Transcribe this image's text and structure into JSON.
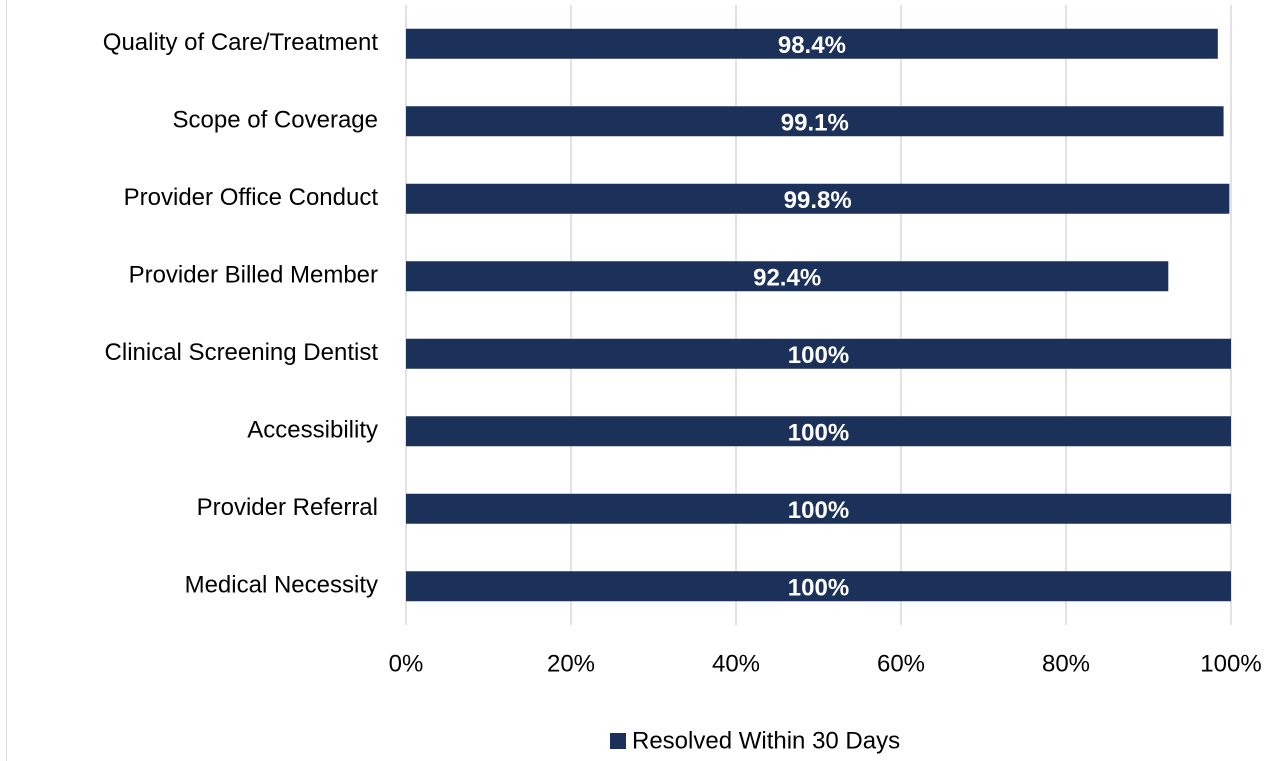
{
  "chart_data": {
    "type": "hbar",
    "categories": [
      "Quality of Care/Treatment",
      "Scope of Coverage",
      "Provider Office Conduct",
      "Provider Billed Member",
      "Clinical Screening Dentist",
      "Accessibility",
      "Provider Referral",
      "Medical Necessity"
    ],
    "series": [
      {
        "name": "Resolved Within 30 Days",
        "color": "#1c3159",
        "values": [
          98.4,
          99.1,
          99.8,
          92.4,
          100,
          100,
          100,
          100
        ],
        "value_labels": [
          "98.4%",
          "99.1%",
          "99.8%",
          "92.4%",
          "100%",
          "100%",
          "100%",
          "100%"
        ]
      }
    ],
    "xlim": [
      0,
      100
    ],
    "xticks": [
      {
        "value": 0,
        "label": "0%"
      },
      {
        "value": 20,
        "label": "20%"
      },
      {
        "value": 40,
        "label": "40%"
      },
      {
        "value": 60,
        "label": "60%"
      },
      {
        "value": 80,
        "label": "80%"
      },
      {
        "value": 100,
        "label": "100%"
      }
    ],
    "grid": true,
    "legend": "bottom"
  }
}
